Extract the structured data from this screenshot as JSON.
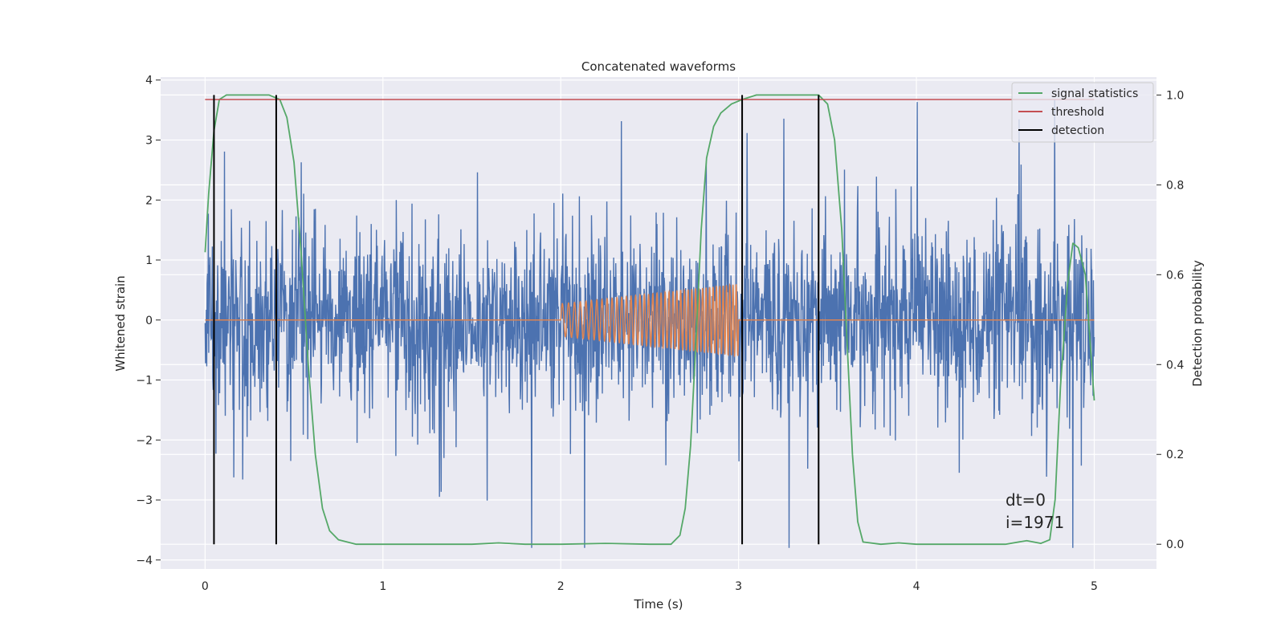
{
  "chart_data": {
    "type": "line",
    "title": "Concatenated waveforms",
    "xlabel": "Time (s)",
    "ylabel": "Whitened strain",
    "y2label": "Detection probability",
    "xlim": [
      -0.25,
      5.35
    ],
    "ylim": [
      -4.15,
      4.05
    ],
    "y2lim": [
      -0.055,
      1.04
    ],
    "xticks": [
      0,
      1,
      2,
      3,
      4,
      5
    ],
    "yticks": [
      -4,
      -3,
      -2,
      -1,
      0,
      1,
      2,
      3,
      4
    ],
    "yticks_labels": [
      "−4",
      "−3",
      "−2",
      "−1",
      "0",
      "1",
      "2",
      "3",
      "4"
    ],
    "y2ticks": [
      0.0,
      0.2,
      0.4,
      0.6,
      0.8,
      1.0
    ],
    "y2ticks_labels": [
      "0.0",
      "0.2",
      "0.4",
      "0.6",
      "0.8",
      "1.0"
    ],
    "grid": true,
    "legend_position": "top-right",
    "series": [
      {
        "name": "",
        "role": "whitened strain (noise)",
        "axis": "left",
        "color": "#4c72b0",
        "x_range": [
          0,
          5
        ],
        "approx_envelope": [
          -3.8,
          3.7
        ]
      },
      {
        "name": "",
        "role": "injected waveform",
        "axis": "left",
        "color": "#dd8452",
        "x": [
          0,
          2.0,
          2.0,
          3.0,
          3.0,
          5.0
        ],
        "amplitude": [
          0,
          0,
          0.27,
          0.6,
          0,
          0
        ]
      },
      {
        "name": "signal statistics",
        "axis": "right",
        "color": "#55a868",
        "x": [
          0.0,
          0.02,
          0.05,
          0.08,
          0.12,
          0.2,
          0.36,
          0.42,
          0.46,
          0.5,
          0.54,
          0.58,
          0.62,
          0.66,
          0.7,
          0.75,
          0.85,
          1.0,
          1.5,
          1.65,
          1.8,
          2.0,
          2.25,
          2.5,
          2.62,
          2.67,
          2.7,
          2.73,
          2.76,
          2.79,
          2.82,
          2.86,
          2.9,
          2.96,
          3.02,
          3.1,
          3.3,
          3.45,
          3.5,
          3.54,
          3.58,
          3.61,
          3.64,
          3.67,
          3.7,
          3.8,
          3.9,
          4.0,
          4.5,
          4.62,
          4.7,
          4.75,
          4.78,
          4.81,
          4.85,
          4.88,
          4.91,
          4.95,
          5.0
        ],
        "y": [
          0.65,
          0.78,
          0.92,
          0.99,
          1.0,
          1.0,
          1.0,
          0.99,
          0.95,
          0.85,
          0.65,
          0.4,
          0.2,
          0.08,
          0.03,
          0.01,
          0.0,
          0.0,
          0.0,
          0.003,
          0.0,
          0.0,
          0.002,
          0.0,
          0.0,
          0.02,
          0.08,
          0.22,
          0.45,
          0.7,
          0.86,
          0.93,
          0.96,
          0.98,
          0.99,
          1.0,
          1.0,
          1.0,
          0.98,
          0.9,
          0.7,
          0.45,
          0.2,
          0.05,
          0.005,
          0.0,
          0.003,
          0.0,
          0.0,
          0.008,
          0.002,
          0.01,
          0.1,
          0.35,
          0.58,
          0.67,
          0.66,
          0.6,
          0.32
        ]
      },
      {
        "name": "threshold",
        "axis": "right",
        "color": "#c44e52",
        "x": [
          0,
          5
        ],
        "y": [
          0.99,
          0.99
        ]
      },
      {
        "name": "detection",
        "axis": "right",
        "color": "#000000",
        "x": [
          0.05,
          0.4,
          3.02,
          3.45
        ],
        "y_range": [
          0.0,
          1.0
        ]
      }
    ],
    "annotations": [
      "dt=0",
      "i=1971"
    ]
  }
}
